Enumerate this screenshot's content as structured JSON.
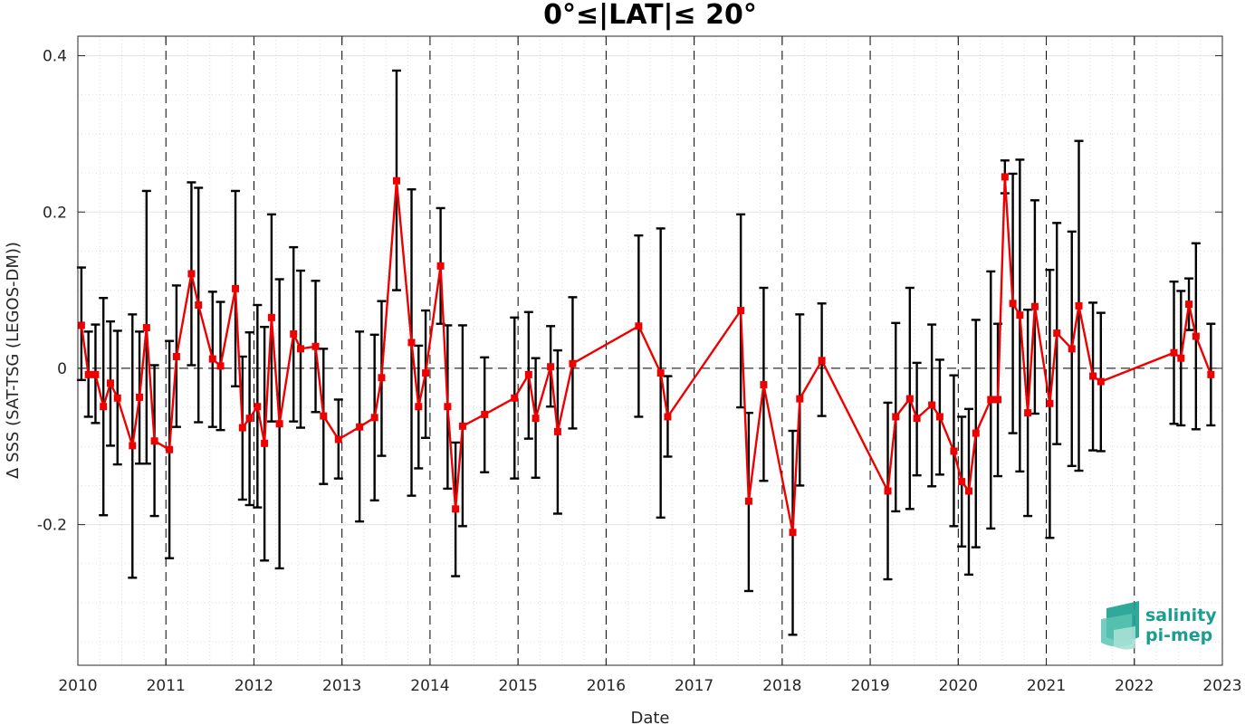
{
  "chart_data": {
    "type": "line",
    "title": "0°≤|LAT|≤ 20°",
    "xlabel": "Date",
    "ylabel": "Δ SSS (SAT-TSG (LEGOS-DM))",
    "xlim": [
      2010.0,
      2023.0
    ],
    "ylim": [
      -0.38,
      0.425
    ],
    "x_ticks": [
      "2010",
      "2011",
      "2012",
      "2013",
      "2014",
      "2015",
      "2016",
      "2017",
      "2018",
      "2019",
      "2020",
      "2021",
      "2022",
      "2023"
    ],
    "y_ticks": [
      {
        "v": -0.2,
        "label": "-0.2"
      },
      {
        "v": 0,
        "label": "0"
      },
      {
        "v": 0.2,
        "label": "0.2"
      },
      {
        "v": 0.4,
        "label": "0.4"
      }
    ],
    "grid": true,
    "year_dividers": true,
    "zero_line": true,
    "series": [
      {
        "line_color": "#ee0000",
        "errorbar_color": "#000000",
        "marker": "square",
        "points": [
          [
            2010.04,
            0.055,
            -0.015,
            0.129
          ],
          [
            2010.12,
            -0.008,
            -0.062,
            0.047
          ],
          [
            2010.2,
            -0.008,
            -0.07,
            0.056
          ],
          [
            2010.29,
            -0.049,
            -0.188,
            0.09
          ],
          [
            2010.37,
            -0.019,
            -0.099,
            0.06
          ],
          [
            2010.45,
            -0.038,
            -0.123,
            0.048
          ],
          [
            2010.62,
            -0.099,
            -0.268,
            0.069
          ],
          [
            2010.7,
            -0.037,
            -0.122,
            0.047
          ],
          [
            2010.78,
            0.052,
            -0.122,
            0.227
          ],
          [
            2010.87,
            -0.093,
            -0.189,
            0.004
          ],
          [
            2011.04,
            -0.104,
            -0.243,
            0.035
          ],
          [
            2011.12,
            0.015,
            -0.075,
            0.106
          ],
          [
            2011.29,
            0.121,
            0.004,
            0.238
          ],
          [
            2011.37,
            0.081,
            -0.069,
            0.231
          ],
          [
            2011.53,
            0.012,
            -0.075,
            0.098
          ],
          [
            2011.62,
            0.003,
            -0.079,
            0.085
          ],
          [
            2011.79,
            0.102,
            -0.023,
            0.227
          ],
          [
            2011.87,
            -0.076,
            -0.168,
            0.015
          ],
          [
            2011.95,
            -0.064,
            -0.175,
            0.046
          ],
          [
            2012.04,
            -0.049,
            -0.178,
            0.081
          ],
          [
            2012.12,
            -0.096,
            -0.246,
            0.053
          ],
          [
            2012.2,
            0.065,
            -0.068,
            0.197
          ],
          [
            2012.29,
            -0.071,
            -0.256,
            0.114
          ],
          [
            2012.45,
            0.044,
            -0.068,
            0.155
          ],
          [
            2012.53,
            0.025,
            -0.076,
            0.125
          ],
          [
            2012.7,
            0.028,
            -0.056,
            0.112
          ],
          [
            2012.79,
            -0.061,
            -0.148,
            0.025
          ],
          [
            2012.96,
            -0.091,
            -0.141,
            -0.04
          ],
          [
            2013.2,
            -0.075,
            -0.196,
            0.047
          ],
          [
            2013.37,
            -0.063,
            -0.169,
            0.043
          ],
          [
            2013.45,
            -0.012,
            -0.112,
            0.086
          ],
          [
            2013.62,
            0.24,
            0.1,
            0.381
          ],
          [
            2013.79,
            0.033,
            -0.163,
            0.229
          ],
          [
            2013.87,
            -0.049,
            -0.128,
            0.029
          ],
          [
            2013.95,
            -0.006,
            -0.089,
            0.074
          ],
          [
            2014.12,
            0.131,
            0.057,
            0.205
          ],
          [
            2014.2,
            -0.049,
            -0.154,
            0.055
          ],
          [
            2014.29,
            -0.18,
            -0.266,
            -0.095
          ],
          [
            2014.37,
            -0.074,
            -0.202,
            0.055
          ],
          [
            2014.62,
            -0.059,
            -0.133,
            0.014
          ],
          [
            2014.96,
            -0.038,
            -0.141,
            0.065
          ],
          [
            2015.12,
            -0.008,
            -0.09,
            0.072
          ],
          [
            2015.2,
            -0.064,
            -0.14,
            0.013
          ],
          [
            2015.37,
            0.002,
            -0.049,
            0.054
          ],
          [
            2015.45,
            -0.081,
            -0.186,
            0.023
          ],
          [
            2015.62,
            0.006,
            -0.077,
            0.091
          ],
          [
            2016.37,
            0.054,
            -0.062,
            0.17
          ],
          [
            2016.62,
            -0.006,
            -0.191,
            0.179
          ],
          [
            2016.7,
            -0.062,
            -0.113,
            -0.01
          ],
          [
            2017.53,
            0.074,
            -0.05,
            0.197
          ],
          [
            2017.62,
            -0.17,
            -0.285,
            -0.057
          ],
          [
            2017.79,
            -0.021,
            -0.144,
            0.103
          ],
          [
            2018.12,
            -0.21,
            -0.341,
            -0.08
          ],
          [
            2018.2,
            -0.039,
            -0.15,
            0.069
          ],
          [
            2018.45,
            0.01,
            -0.061,
            0.083
          ],
          [
            2019.2,
            -0.157,
            -0.27,
            -0.044
          ],
          [
            2019.29,
            -0.062,
            -0.183,
            0.058
          ],
          [
            2019.45,
            -0.039,
            -0.18,
            0.103
          ],
          [
            2019.53,
            -0.064,
            -0.137,
            0.007
          ],
          [
            2019.7,
            -0.047,
            -0.151,
            0.056
          ],
          [
            2019.79,
            -0.062,
            -0.136,
            0.011
          ],
          [
            2019.95,
            -0.106,
            -0.202,
            -0.009
          ],
          [
            2020.04,
            -0.145,
            -0.228,
            -0.062
          ],
          [
            2020.12,
            -0.157,
            -0.264,
            -0.052
          ],
          [
            2020.2,
            -0.083,
            -0.229,
            0.062
          ],
          [
            2020.37,
            -0.04,
            -0.205,
            0.124
          ],
          [
            2020.45,
            -0.04,
            -0.138,
            0.057
          ],
          [
            2020.53,
            0.245,
            0.224,
            0.266
          ],
          [
            2020.62,
            0.083,
            -0.083,
            0.249
          ],
          [
            2020.7,
            0.068,
            -0.132,
            0.267
          ],
          [
            2020.79,
            -0.057,
            -0.189,
            0.075
          ],
          [
            2020.87,
            0.079,
            -0.058,
            0.215
          ],
          [
            2021.04,
            -0.045,
            -0.217,
            0.126
          ],
          [
            2021.12,
            0.045,
            -0.097,
            0.186
          ],
          [
            2021.29,
            0.025,
            -0.125,
            0.175
          ],
          [
            2021.37,
            0.08,
            -0.131,
            0.291
          ],
          [
            2021.53,
            -0.01,
            -0.105,
            0.084
          ],
          [
            2021.62,
            -0.017,
            -0.106,
            0.071
          ],
          [
            2022.45,
            0.02,
            -0.071,
            0.111
          ],
          [
            2022.53,
            0.013,
            -0.073,
            0.099
          ],
          [
            2022.62,
            0.082,
            0.049,
            0.115
          ],
          [
            2022.7,
            0.041,
            -0.078,
            0.16
          ],
          [
            2022.87,
            -0.008,
            -0.073,
            0.057
          ]
        ]
      }
    ]
  },
  "logo": {
    "line1": "salinity",
    "line2": "pi-mep",
    "color": "#1a9e8f"
  }
}
